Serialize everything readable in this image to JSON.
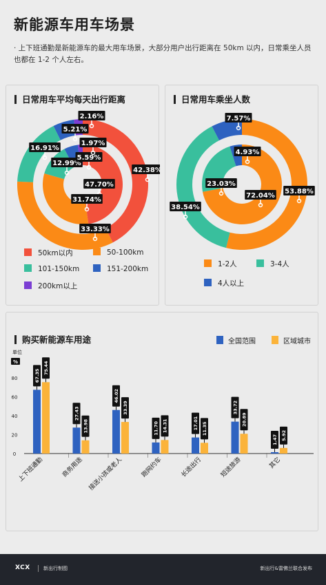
{
  "header": {
    "title": "新能源车用车场景",
    "subtitle": "· 上下班通勤是新能源车的最大用车场景，大部分用户出行距离在 50km 以内，日常乘坐人员也都在 1-2 个人左右。"
  },
  "chart_data": [
    {
      "type": "pie",
      "title": "日常用车平均每天出行距离",
      "style": "nested-donut",
      "categories": [
        "50km以内",
        "50-100km",
        "101-150km",
        "151-200km",
        "200km以上"
      ],
      "colors": [
        "#f2513c",
        "#fb8a16",
        "#39bf9d",
        "#2e62c0",
        "#7b3ed3"
      ],
      "series": [
        {
          "ring": "outer",
          "values": [
            42.38,
            33.33,
            16.91,
            5.21,
            2.16
          ],
          "labels": [
            "42.38%",
            "33.33%",
            "16.91%",
            "5.21%",
            "2.16%"
          ]
        },
        {
          "ring": "inner",
          "values": [
            47.7,
            31.74,
            12.99,
            5.59,
            1.97
          ],
          "labels": [
            "47.70%",
            "31.74%",
            "12.99%",
            "5.59%",
            "1.97%"
          ]
        }
      ],
      "legend": "bottom"
    },
    {
      "type": "pie",
      "title": "日常用车乘坐人数",
      "style": "nested-donut",
      "categories": [
        "1-2人",
        "3-4人",
        "4人以上"
      ],
      "colors": [
        "#fb8a16",
        "#39bf9d",
        "#2e62c0"
      ],
      "series": [
        {
          "ring": "outer",
          "values": [
            53.88,
            38.54,
            7.57
          ],
          "labels": [
            "53.88%",
            "38.54%",
            "7.57%"
          ]
        },
        {
          "ring": "inner",
          "values": [
            72.04,
            23.03,
            4.93
          ],
          "labels": [
            "72.04%",
            "23.03%",
            "4.93%"
          ]
        }
      ],
      "legend": "bottom"
    },
    {
      "type": "bar",
      "title": "购买新能源车用途",
      "categories": [
        "上下班通勤",
        "商务用途",
        "接送小孩或老人",
        "跑网约车",
        "长途出行",
        "短途旅游",
        "其它"
      ],
      "series": [
        {
          "name": "全国范围",
          "color": "#2e62c0",
          "values": [
            67.35,
            27.43,
            46.02,
            11.7,
            17.01,
            33.72,
            1.47
          ],
          "labels": [
            "67.35",
            "27.43",
            "46.02",
            "11.70",
            "17.01",
            "33.72",
            "1.47"
          ]
        },
        {
          "name": "区域城市",
          "color": "#fbb33a",
          "values": [
            75.44,
            13.98,
            33.39,
            14.31,
            11.35,
            20.89,
            5.92
          ],
          "labels": [
            "75.44",
            "13.98",
            "33.39",
            "14.31",
            "11.35",
            "20.89",
            "5.92"
          ]
        }
      ],
      "yunit": "单位",
      "ypercent": "%",
      "yticks": [
        "80",
        "60",
        "40",
        "20",
        "0"
      ],
      "ylim": [
        0,
        80
      ],
      "grid": false,
      "legend": "top-right"
    }
  ],
  "footer": {
    "logo": "XCX",
    "brand": "新出行制图",
    "publisher": "新出行&雷佛兰联合发布"
  }
}
